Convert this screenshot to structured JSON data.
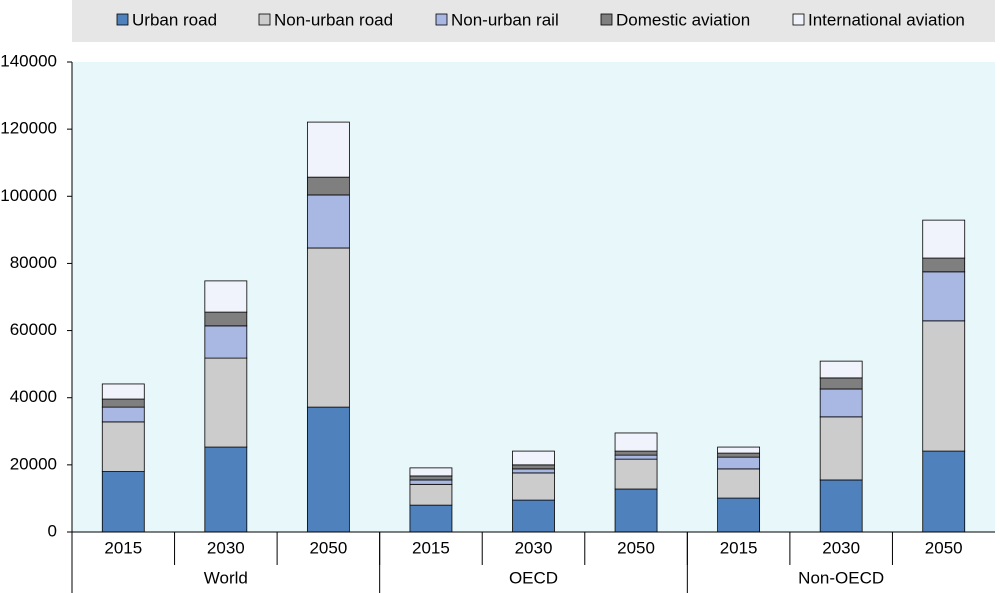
{
  "chart_data": {
    "type": "stacked_bar",
    "categories": [
      "2015",
      "2030",
      "2050",
      "2015",
      "2030",
      "2050",
      "2015",
      "2030",
      "2050"
    ],
    "groups": [
      "World",
      "OECD",
      "Non-OECD"
    ],
    "series": [
      {
        "name": "Urban road",
        "color": "#4f81bd",
        "values": [
          18000,
          25300,
          37200,
          8000,
          9500,
          12800,
          10100,
          15500,
          24100
        ]
      },
      {
        "name": "Non-urban road",
        "color": "#cccccc",
        "values": [
          14800,
          26500,
          47400,
          6200,
          8100,
          8900,
          8700,
          18800,
          38800
        ]
      },
      {
        "name": "Non-urban rail",
        "color": "#a9b7e3",
        "values": [
          4400,
          9600,
          15800,
          1300,
          1200,
          1200,
          3500,
          8300,
          14600
        ]
      },
      {
        "name": "Domestic aviation",
        "color": "#7f7f7f",
        "values": [
          2400,
          4100,
          5300,
          1200,
          1200,
          1200,
          1200,
          3300,
          4100
        ]
      },
      {
        "name": "International aviation",
        "color": "#f0f3fb",
        "values": [
          4500,
          9300,
          16400,
          2400,
          4100,
          5400,
          1800,
          5000,
          11300
        ]
      }
    ],
    "ylim": [
      0,
      140000
    ],
    "yticks": [
      0,
      20000,
      40000,
      60000,
      80000,
      100000,
      120000,
      140000
    ],
    "plot_background": "#e8f7fa"
  }
}
